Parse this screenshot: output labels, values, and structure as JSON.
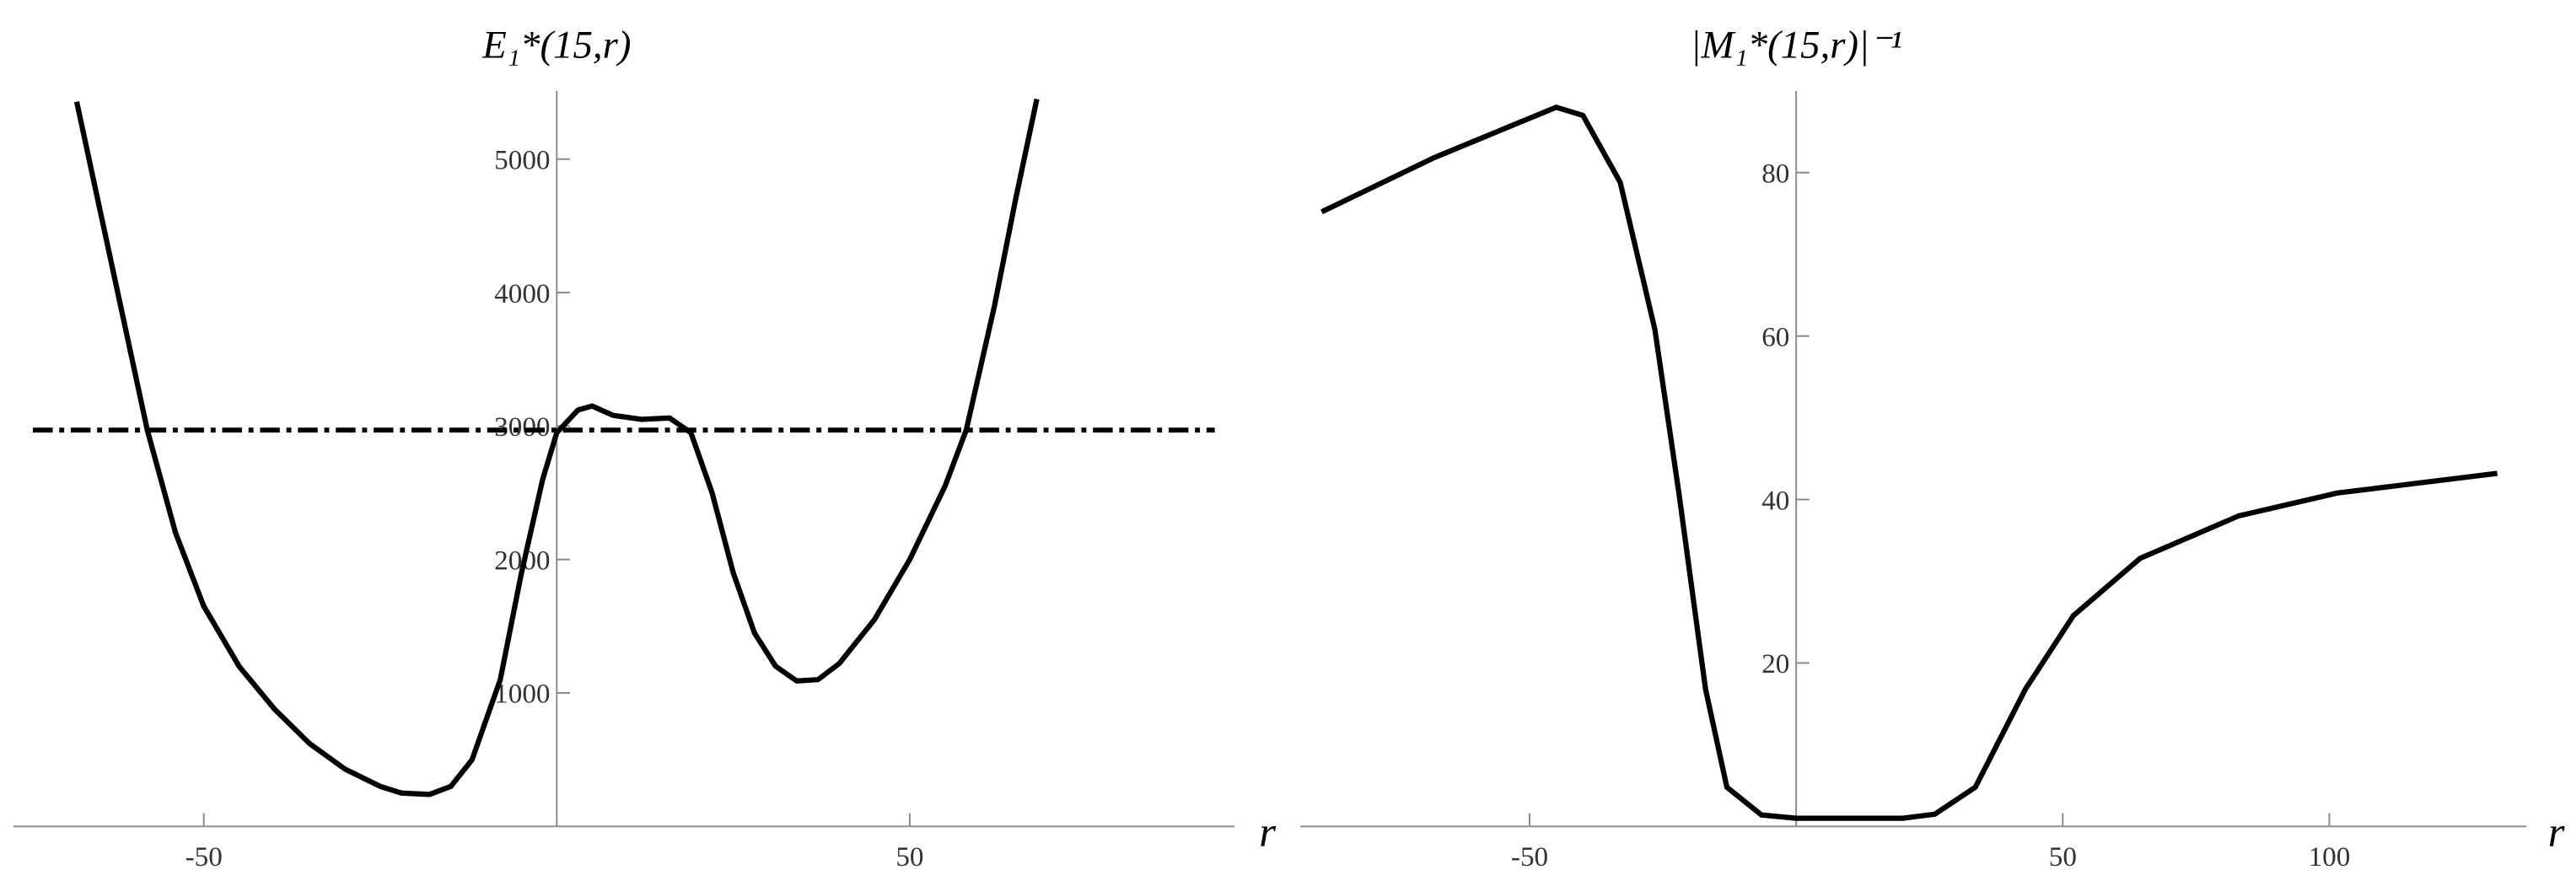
{
  "chart_data": [
    {
      "type": "line",
      "title": "E₁*(15,r)",
      "x_label": "r",
      "xlim": [
        -77,
        96
      ],
      "ylim": [
        0,
        5450
      ],
      "xticks": [
        -50,
        50
      ],
      "yticks": [
        1000,
        2000,
        3000,
        4000,
        5000
      ],
      "reference_line": {
        "value": 2970,
        "color": "#000000",
        "style": "dashdot"
      },
      "series": [
        {
          "color": "#000000",
          "x": [
            -68,
            -63,
            -58,
            -54,
            -50,
            -45,
            -40,
            -35,
            -30,
            -25,
            -22,
            -18,
            -15,
            -12,
            -8,
            -5,
            -2,
            0,
            3,
            5,
            8,
            12,
            16,
            19,
            22,
            25,
            28,
            31,
            34,
            37,
            40,
            45,
            50,
            55,
            58,
            62,
            65,
            68
          ],
          "values": [
            5430,
            4200,
            2970,
            2200,
            1650,
            1200,
            880,
            620,
            430,
            300,
            250,
            240,
            300,
            500,
            1100,
            1900,
            2600,
            2950,
            3120,
            3150,
            3080,
            3050,
            3060,
            2950,
            2500,
            1900,
            1450,
            1200,
            1090,
            1100,
            1220,
            1550,
            2000,
            2550,
            2970,
            3900,
            4700,
            5450
          ]
        }
      ]
    },
    {
      "type": "line",
      "title": "|M₁*(15,r)|⁻¹",
      "x_label": "r",
      "xlim": [
        -93,
        137
      ],
      "ylim": [
        0,
        89
      ],
      "xticks": [
        -50,
        50,
        100
      ],
      "yticks": [
        20,
        40,
        60,
        80
      ],
      "series": [
        {
          "color": "#000000",
          "x": [
            -89,
            -68,
            -45,
            -40,
            -33,
            -26.5,
            -22,
            -17,
            -13,
            -6.5,
            0,
            10,
            20,
            26,
            33.6,
            43,
            52,
            64.5,
            83,
            101.5,
            131.5
          ],
          "values": [
            75.2,
            81.8,
            88,
            87,
            78.8,
            60.8,
            40.8,
            16.8,
            4.8,
            1.4,
            1,
            1,
            1,
            1.5,
            4.8,
            16.8,
            25.8,
            32.8,
            38,
            40.8,
            43.2
          ]
        }
      ]
    }
  ]
}
